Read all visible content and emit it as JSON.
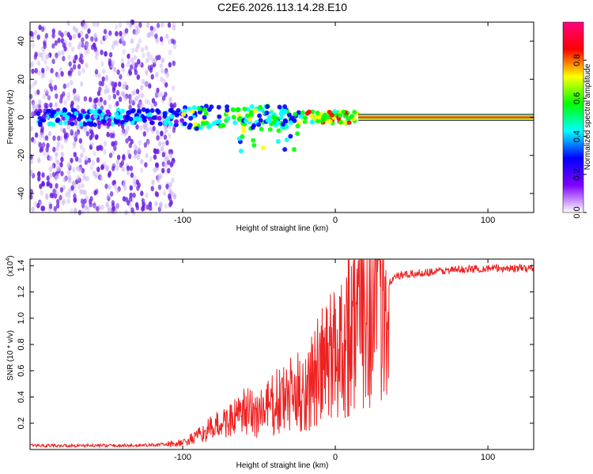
{
  "title": "C2E6.2026.113.14.28.E10",
  "chart_data": [
    {
      "type": "heatmap",
      "description_role": "spectrogram",
      "xlabel": "Height of straight line (km)",
      "ylabel": "Frequency (Hz)",
      "xlim": [
        -200,
        130
      ],
      "ylim": [
        -50,
        50
      ],
      "xticks": [
        -100,
        0,
        100
      ],
      "xtick_labels": [
        "-100",
        "0",
        "100"
      ],
      "yticks": [
        40,
        20,
        0,
        -20,
        -40
      ],
      "ytick_labels": [
        "40",
        "20",
        "0",
        "-20",
        "-40"
      ],
      "noise_region_x": [
        -200,
        -105
      ],
      "tonal_line_start_x": 15,
      "tonal_frequency": 0,
      "colorbar": {
        "label": "Normalized spectral amplitude",
        "range": [
          0.0,
          1.0
        ],
        "ticks": [
          0.0,
          0.2,
          0.4,
          0.6,
          0.8
        ],
        "tick_labels": [
          "0.0",
          "0.2",
          "0.4",
          "0.6",
          "0.8"
        ],
        "colormap": [
          "#ffffff",
          "#8000ff",
          "#0000ff",
          "#00ffff",
          "#00ff00",
          "#ffff00",
          "#ff0000",
          "#ff0080"
        ]
      }
    },
    {
      "type": "line",
      "xlabel": "Height of straight line (km)",
      "ylabel": "SNR (10 * v/v)",
      "y_multiplier_label": "(x10",
      "y_multiplier_exp": "4",
      "y_multiplier_close": ")",
      "xlim": [
        -200,
        130
      ],
      "ylim": [
        0,
        1.45
      ],
      "xticks": [
        -100,
        0,
        100
      ],
      "xtick_labels": [
        "-100",
        "0",
        "100"
      ],
      "yticks": [
        0.2,
        0.4,
        0.6,
        0.8,
        1.0,
        1.2,
        1.4
      ],
      "ytick_labels": [
        "0.2",
        "0.4",
        "0.6",
        "0.8",
        "1.0",
        "1.2",
        "1.4"
      ],
      "color": "#ee2222",
      "profile_x": [
        -200,
        -130,
        -110,
        -100,
        -90,
        -80,
        -70,
        -60,
        -50,
        -40,
        -30,
        -20,
        -10,
        0,
        10,
        20,
        30,
        40,
        60,
        80,
        100,
        130
      ],
      "profile_y": [
        0.03,
        0.03,
        0.04,
        0.05,
        0.1,
        0.17,
        0.22,
        0.27,
        0.28,
        0.34,
        0.4,
        0.45,
        0.6,
        0.75,
        0.95,
        1.1,
        1.22,
        1.32,
        1.35,
        1.37,
        1.38,
        1.38
      ]
    }
  ]
}
